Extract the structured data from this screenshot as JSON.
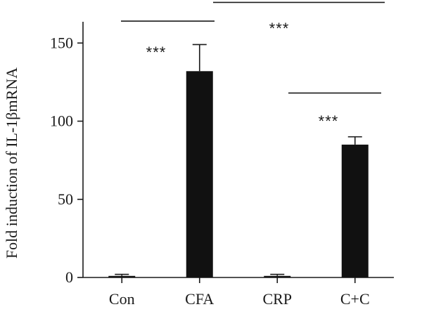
{
  "chart_data": {
    "type": "bar",
    "title": "",
    "xlabel": "",
    "ylabel": "Fold induction of IL-1βmRNA",
    "categories": [
      "Con",
      "CFA",
      "CRP",
      "C+C"
    ],
    "values": [
      1,
      132,
      1,
      85
    ],
    "error_upper": [
      2,
      149,
      2,
      90
    ],
    "ylim": [
      0,
      160
    ],
    "yticks": [
      0,
      50,
      100,
      150
    ],
    "grid": false,
    "legend": "none",
    "bar_color": "#111111",
    "significance": [
      {
        "from": "Con",
        "to": "CFA",
        "label": "***",
        "y": 164
      },
      {
        "from": "CFA",
        "to": "C+C",
        "label": "***",
        "y": 176
      },
      {
        "from": "CRP",
        "to": "C+C",
        "label": "***",
        "y": 118
      }
    ]
  }
}
